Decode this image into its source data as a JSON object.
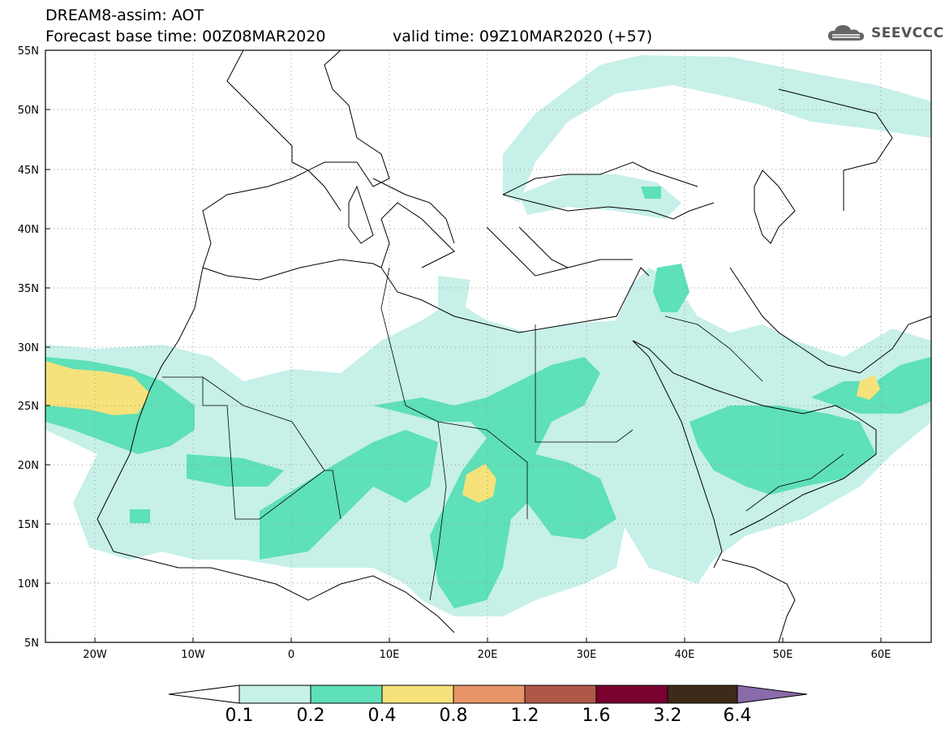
{
  "header": {
    "model": "DREAM8-assim: AOT",
    "base_time": "Forecast base time: 00Z08MAR2020",
    "valid_time": "valid time: 09Z10MAR2020 (+57)"
  },
  "logo": {
    "text": "SEEVCCC",
    "icon": "cloud-icon"
  },
  "map": {
    "lat_labels": [
      "55N",
      "50N",
      "45N",
      "40N",
      "35N",
      "30N",
      "25N",
      "20N",
      "15N",
      "10N",
      "5N"
    ],
    "lat_values": [
      55,
      50,
      45,
      40,
      35,
      30,
      25,
      20,
      15,
      10,
      5
    ],
    "lon_labels": [
      "20W",
      "10W",
      "0",
      "10E",
      "20E",
      "30E",
      "40E",
      "50E",
      "60E"
    ],
    "lon_values": [
      -20,
      -10,
      0,
      10,
      20,
      30,
      40,
      50,
      60
    ],
    "extent": {
      "lon_min": -25,
      "lon_max": 65,
      "lat_min": 5,
      "lat_max": 55
    },
    "grid": "dotted"
  },
  "colorbar": {
    "labels": [
      "0.1",
      "0.2",
      "0.4",
      "0.8",
      "1.2",
      "1.6",
      "3.2",
      "6.4"
    ],
    "colors": [
      "#ffffff",
      "#c6f0e8",
      "#5ee0b8",
      "#f5e27a",
      "#e89468",
      "#b05848",
      "#7a0030",
      "#3e2a18",
      "#8a6aa8"
    ]
  },
  "legend_colors": {
    "aot_01": "#c6f0e8",
    "aot_02": "#5ee0b8",
    "aot_04": "#f5e27a"
  }
}
